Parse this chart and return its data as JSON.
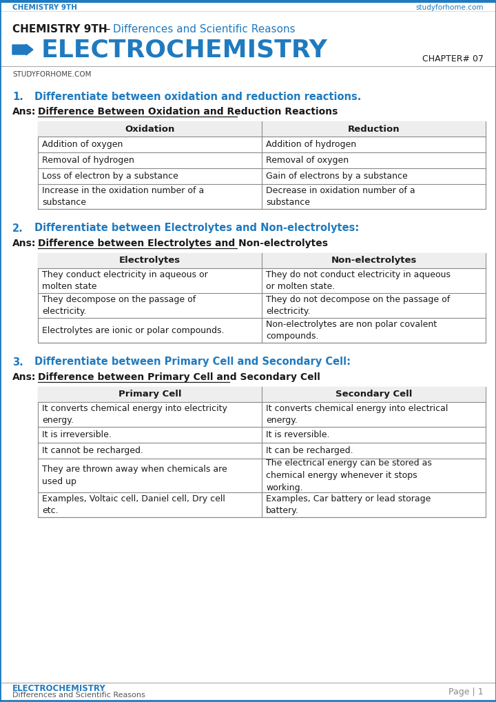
{
  "header_left": "CHEMISTRY 9TH",
  "header_right": "studyforhome.com",
  "chapter": "CHAPTER# 07",
  "watermark": "STUDYFORHOME.COM",
  "footer_left_1": "ELECTROCHEMISTRY",
  "footer_left_2": "Differences and Scientific Reasons",
  "footer_right": "Page | 1",
  "blue": "#1f7abf",
  "black": "#1a1a1a",
  "gray_border": "#888888",
  "header_bg": "#f0f0f0",
  "white": "#ffffff",
  "q1_q": "Differentiate between oxidation and reduction reactions.",
  "q1_ans": "Difference Between Oxidation and Reduction Reactions",
  "q1_h1": "Oxidation",
  "q1_h2": "Reduction",
  "q1_rows": [
    [
      "Addition of oxygen",
      "Addition of hydrogen"
    ],
    [
      "Removal of hydrogen",
      "Removal of oxygen"
    ],
    [
      "Loss of electron by a substance",
      "Gain of electrons by a substance"
    ],
    [
      "Increase in the oxidation number of a\nsubstance",
      "Decrease in oxidation number of a\nsubstance"
    ]
  ],
  "q2_q": "Differentiate between Electrolytes and Non-electrolytes:",
  "q2_ans": "Difference between Electrolytes and Non-electrolytes",
  "q2_h1": "Electrolytes",
  "q2_h2": "Non-electrolytes",
  "q2_rows": [
    [
      "They conduct electricity in aqueous or\nmolten state",
      "They do not conduct electricity in aqueous\nor molten state."
    ],
    [
      "They decompose on the passage of\nelectricity.",
      "They do not decompose on the passage of\nelectricity."
    ],
    [
      "Electrolytes are ionic or polar compounds.",
      "Non-electrolytes are non polar covalent\ncompounds."
    ]
  ],
  "q3_q": "Differentiate between Primary Cell and Secondary Cell:",
  "q3_ans": "Difference between Primary Cell and Secondary Cell",
  "q3_h1": "Primary Cell",
  "q3_h2": "Secondary Cell",
  "q3_rows": [
    [
      "It converts chemical energy into electricity\nenergy.",
      "It converts chemical energy into electrical\nenergy."
    ],
    [
      "It is irreversible.",
      "It is reversible."
    ],
    [
      "It cannot be recharged.",
      "It can be recharged."
    ],
    [
      "They are thrown away when chemicals are\nused up",
      "The electrical energy can be stored as\nchemical energy whenever it stops\nworking."
    ],
    [
      "Examples, Voltaic cell, Daniel cell, Dry cell\netc.",
      "Examples, Car battery or lead storage\nbattery."
    ]
  ]
}
